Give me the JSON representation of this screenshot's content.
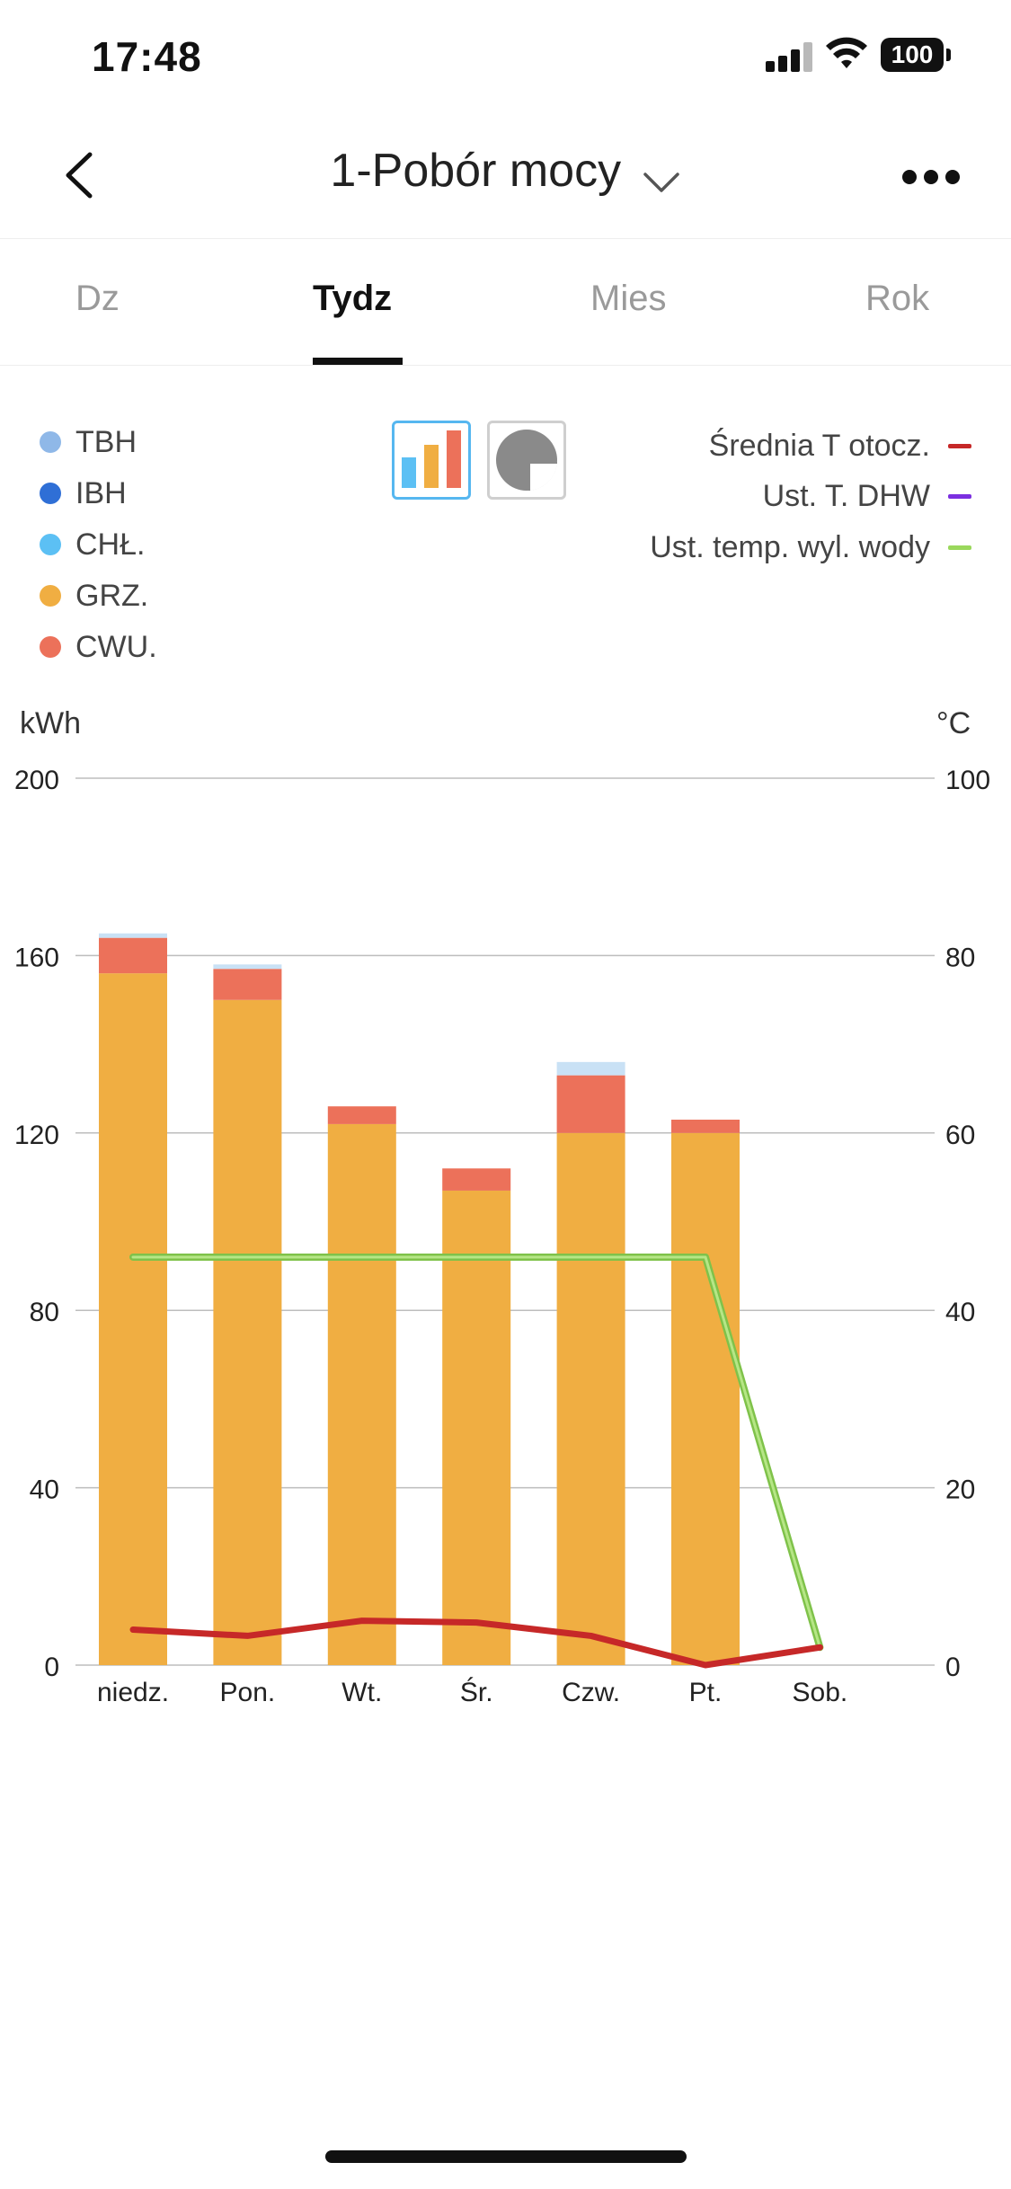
{
  "status_bar": {
    "time": "17:48",
    "battery": "100"
  },
  "header": {
    "title": "1-Pobór mocy"
  },
  "tabs": [
    {
      "label": "Dz",
      "active": false
    },
    {
      "label": "Tydz",
      "active": true
    },
    {
      "label": "Mies",
      "active": false
    },
    {
      "label": "Rok",
      "active": false
    }
  ],
  "legend_left": [
    {
      "label": "TBH",
      "color": "#8fb8e8"
    },
    {
      "label": "IBH",
      "color": "#2f6fd6"
    },
    {
      "label": "CHŁ.",
      "color": "#5cc0f4"
    },
    {
      "label": "GRZ.",
      "color": "#f0ae42"
    },
    {
      "label": "CWU.",
      "color": "#ec715a"
    }
  ],
  "legend_right": [
    {
      "label": "Średnia T otocz.",
      "color": "#c62828"
    },
    {
      "label": "Ust. T. DHW",
      "color": "#7b2fe0"
    },
    {
      "label": "Ust. temp. wyl. wody",
      "color": "#9ad85c"
    }
  ],
  "axis": {
    "left_unit": "kWh",
    "right_unit": "°C"
  },
  "chart_data": {
    "type": "bar",
    "categories": [
      "niedz.",
      "Pon.",
      "Wt.",
      "Śr.",
      "Czw.",
      "Pt.",
      "Sob."
    ],
    "ylim": [
      0,
      200
    ],
    "y_ticks": [
      "0",
      "40",
      "80",
      "120",
      "160",
      "200"
    ],
    "y2lim": [
      0,
      100
    ],
    "y2_ticks": [
      "0",
      "20",
      "40",
      "60",
      "80",
      "100"
    ],
    "stacked": true,
    "series": [
      {
        "name": "GRZ.",
        "color": "#f0ae42",
        "values": [
          156,
          150,
          122,
          107,
          120,
          120,
          0
        ]
      },
      {
        "name": "CWU.",
        "color": "#ec715a",
        "values": [
          8,
          7,
          4,
          5,
          13,
          3,
          0
        ]
      },
      {
        "name": "TBH",
        "color": "#c9e1f5",
        "values": [
          1,
          1,
          0,
          0,
          3,
          0,
          0
        ]
      }
    ],
    "lines": [
      {
        "name": "Ust. temp. wyl. wody",
        "color": "#9ad85c",
        "axis": "right",
        "values": [
          46,
          46,
          46,
          46,
          46,
          46,
          2
        ]
      },
      {
        "name": "Średnia T otocz.",
        "color": "#c62828",
        "axis": "right",
        "values": [
          4,
          3.3,
          5,
          4.8,
          3.3,
          0,
          2
        ]
      }
    ]
  }
}
